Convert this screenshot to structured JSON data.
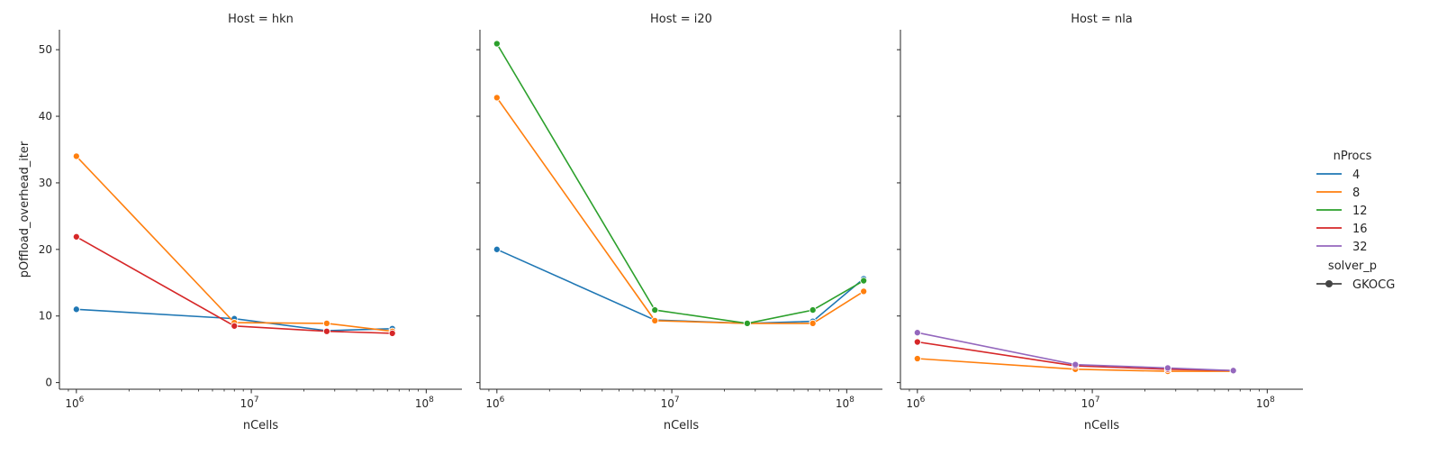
{
  "chart_data": {
    "type": "line",
    "ylabel": "pOffload_overhead_iter",
    "xlabel": "nCells",
    "x_scale": "log",
    "xlim": [
      800000,
      160000000
    ],
    "ylim": [
      -1,
      53
    ],
    "y_ticks": [
      0,
      10,
      20,
      30,
      40,
      50
    ],
    "x_ticks": [
      {
        "value": 1000000,
        "base": "10",
        "exp": "6"
      },
      {
        "value": 10000000,
        "base": "10",
        "exp": "7"
      },
      {
        "value": 100000000,
        "base": "10",
        "exp": "8"
      }
    ],
    "legend": {
      "title": "nProcs",
      "entries": [
        {
          "label": "4",
          "color": "#1f77b4"
        },
        {
          "label": "8",
          "color": "#ff7f0e"
        },
        {
          "label": "12",
          "color": "#2ca02c"
        },
        {
          "label": "16",
          "color": "#d62728"
        },
        {
          "label": "32",
          "color": "#9467bd"
        }
      ],
      "style_title": "solver_p",
      "style_entries": [
        {
          "label": "GKOCG"
        }
      ]
    },
    "panels": [
      {
        "title": "Host = hkn",
        "series": [
          {
            "name": "4",
            "color": "#1f77b4",
            "x": [
              1000000,
              8000000,
              27000000,
              64000000
            ],
            "y": [
              11.0,
              9.6,
              7.8,
              8.1
            ]
          },
          {
            "name": "8",
            "color": "#ff7f0e",
            "x": [
              1000000,
              8000000,
              27000000,
              64000000
            ],
            "y": [
              34.0,
              9.0,
              8.9,
              7.7
            ]
          },
          {
            "name": "16",
            "color": "#d62728",
            "x": [
              1000000,
              8000000,
              27000000,
              64000000
            ],
            "y": [
              21.9,
              8.5,
              7.7,
              7.4
            ]
          }
        ]
      },
      {
        "title": "Host = i20",
        "series": [
          {
            "name": "4",
            "color": "#1f77b4",
            "x": [
              1000000,
              8000000,
              27000000,
              64000000,
              125000000
            ],
            "y": [
              20.0,
              9.4,
              8.9,
              9.2,
              15.6
            ]
          },
          {
            "name": "8",
            "color": "#ff7f0e",
            "x": [
              1000000,
              8000000,
              27000000,
              64000000,
              125000000
            ],
            "y": [
              42.8,
              9.3,
              8.9,
              8.9,
              13.7
            ]
          },
          {
            "name": "12",
            "color": "#2ca02c",
            "x": [
              1000000,
              8000000,
              27000000,
              64000000,
              125000000
            ],
            "y": [
              50.9,
              10.9,
              8.9,
              10.9,
              15.3
            ]
          }
        ]
      },
      {
        "title": "Host = nla",
        "series": [
          {
            "name": "8",
            "color": "#ff7f0e",
            "x": [
              1000000,
              8000000,
              27000000,
              64000000
            ],
            "y": [
              3.6,
              2.0,
              1.7,
              1.7
            ]
          },
          {
            "name": "16",
            "color": "#d62728",
            "x": [
              1000000,
              8000000,
              27000000,
              64000000
            ],
            "y": [
              6.1,
              2.5,
              2.0,
              1.8
            ]
          },
          {
            "name": "32",
            "color": "#9467bd",
            "x": [
              1000000,
              8000000,
              27000000,
              64000000
            ],
            "y": [
              7.5,
              2.7,
              2.2,
              1.8
            ]
          }
        ]
      }
    ]
  }
}
